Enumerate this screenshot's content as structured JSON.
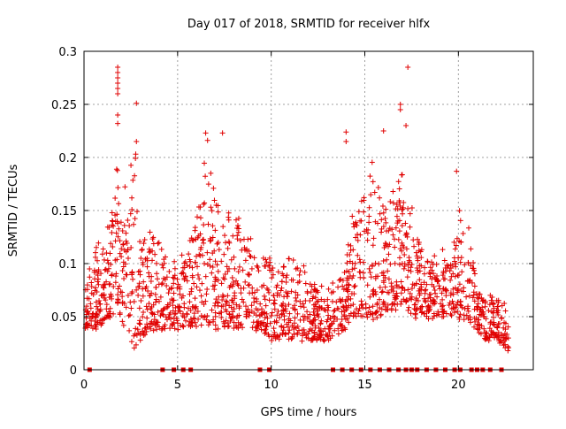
{
  "chart_data": {
    "type": "scatter",
    "title": "Day 017 of 2018, SRMTID for receiver hlfx",
    "xlabel": "GPS time / hours",
    "ylabel": "SRMTID / TECUs",
    "xlim": [
      0,
      24
    ],
    "ylim": [
      0,
      0.3
    ],
    "grid": true,
    "marker": "+",
    "series_color": "#e00000",
    "x_ticks": [
      0,
      5,
      10,
      15,
      20
    ],
    "x_tick_labels": [
      "0",
      "5",
      "10",
      "15",
      "20"
    ],
    "y_ticks": [
      0,
      0.05,
      0.1,
      0.15,
      0.2,
      0.25,
      0.3
    ],
    "y_tick_labels": [
      "0",
      "0.05",
      "0.1",
      "0.15",
      "0.2",
      "0.25",
      "0.3"
    ],
    "envelope_hours": [
      0,
      0.5,
      1,
      1.5,
      1.75,
      2,
      2.5,
      2.75,
      3,
      3.5,
      4,
      4.5,
      5,
      5.5,
      6,
      6.5,
      7,
      7.5,
      8,
      8.5,
      9,
      9.5,
      10,
      10.5,
      11,
      11.5,
      12,
      12.5,
      13,
      13.5,
      14,
      14.25,
      14.5,
      15,
      15.5,
      16,
      16.5,
      17,
      17.25,
      17.5,
      18,
      18.5,
      19,
      19.5,
      20,
      20.5,
      21,
      21.5,
      22,
      22.5
    ],
    "envelope_low": [
      0.04,
      0.04,
      0.045,
      0.05,
      0.06,
      0.05,
      0.03,
      0.02,
      0.03,
      0.04,
      0.04,
      0.04,
      0.04,
      0.04,
      0.04,
      0.04,
      0.04,
      0.04,
      0.04,
      0.04,
      0.04,
      0.04,
      0.03,
      0.03,
      0.03,
      0.03,
      0.03,
      0.03,
      0.03,
      0.03,
      0.04,
      0.05,
      0.05,
      0.05,
      0.05,
      0.05,
      0.06,
      0.06,
      0.06,
      0.05,
      0.05,
      0.05,
      0.05,
      0.05,
      0.05,
      0.05,
      0.04,
      0.03,
      0.03,
      0.02
    ],
    "envelope_high": [
      0.09,
      0.11,
      0.12,
      0.15,
      0.2,
      0.16,
      0.2,
      0.22,
      0.12,
      0.13,
      0.12,
      0.1,
      0.1,
      0.12,
      0.14,
      0.2,
      0.17,
      0.13,
      0.17,
      0.13,
      0.12,
      0.1,
      0.11,
      0.1,
      0.11,
      0.1,
      0.09,
      0.08,
      0.08,
      0.08,
      0.1,
      0.15,
      0.14,
      0.17,
      0.2,
      0.16,
      0.17,
      0.2,
      0.16,
      0.16,
      0.12,
      0.1,
      0.12,
      0.1,
      0.15,
      0.14,
      0.08,
      0.07,
      0.07,
      0.06
    ],
    "spikes": [
      {
        "x": 1.8,
        "y": 0.285
      },
      {
        "x": 1.8,
        "y": 0.28
      },
      {
        "x": 1.8,
        "y": 0.275
      },
      {
        "x": 1.8,
        "y": 0.27
      },
      {
        "x": 1.8,
        "y": 0.265
      },
      {
        "x": 1.8,
        "y": 0.26
      },
      {
        "x": 1.8,
        "y": 0.24
      },
      {
        "x": 1.8,
        "y": 0.232
      },
      {
        "x": 2.8,
        "y": 0.251
      },
      {
        "x": 2.8,
        "y": 0.215
      },
      {
        "x": 6.5,
        "y": 0.223
      },
      {
        "x": 6.6,
        "y": 0.216
      },
      {
        "x": 7.4,
        "y": 0.223
      },
      {
        "x": 14.0,
        "y": 0.224
      },
      {
        "x": 14.0,
        "y": 0.215
      },
      {
        "x": 16.0,
        "y": 0.225
      },
      {
        "x": 17.3,
        "y": 0.285
      },
      {
        "x": 16.9,
        "y": 0.25
      },
      {
        "x": 16.9,
        "y": 0.245
      },
      {
        "x": 17.2,
        "y": 0.23
      },
      {
        "x": 19.9,
        "y": 0.187
      }
    ],
    "data_gaps_at_zero": [
      0.3,
      4.2,
      4.8,
      5.3,
      5.7,
      9.4,
      9.9,
      13.3,
      13.8,
      14.3,
      14.8,
      15.3,
      15.8,
      16.3,
      16.8,
      17.2,
      17.5,
      17.8,
      18.3,
      18.8,
      19.3,
      19.8,
      20.1,
      20.7,
      21.0,
      21.3,
      21.7,
      22.3
    ],
    "sample_count": 1800,
    "random_seed": 17
  }
}
